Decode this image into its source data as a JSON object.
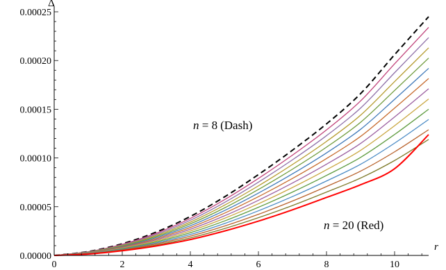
{
  "chart_data": {
    "type": "line",
    "xlabel": "r",
    "ylabel": "Δ",
    "xlim": [
      0,
      11
    ],
    "ylim": [
      0,
      0.00025
    ],
    "x_ticks": [
      0,
      2,
      4,
      6,
      8,
      10
    ],
    "y_ticks": [
      0.0,
      5e-05,
      0.0001,
      0.00015,
      0.0002,
      0.00025
    ],
    "y_tick_labels": [
      "0.00000",
      "0.00005",
      "0.00010",
      "0.00015",
      "0.00020",
      "0.00025"
    ],
    "grid": false,
    "x": [
      0,
      1,
      2,
      3,
      4,
      5,
      6,
      7,
      8,
      9,
      10,
      11
    ],
    "series": [
      {
        "name": "n = 8",
        "style": "dashed",
        "color": "#000000",
        "values": [
          0,
          4e-06,
          1.2e-05,
          2.4e-05,
          4e-05,
          6e-05,
          8.3e-05,
          0.000108,
          0.000135,
          0.000166,
          0.000206,
          0.000245
        ]
      },
      {
        "values": [
          0,
          3.8e-06,
          1.14e-05,
          2.28e-05,
          3.8e-05,
          5.71e-05,
          7.9e-05,
          0.0001029,
          0.0001288,
          0.0001585,
          0.0001966,
          0.000234
        ],
        "color": "#c0427a"
      },
      {
        "values": [
          0,
          3.6e-06,
          1.08e-05,
          2.16e-05,
          3.61e-05,
          5.43e-05,
          7.52e-05,
          9.81e-05,
          0.0001229,
          0.0001512,
          0.0001875,
          0.0002235
        ],
        "color": "#8e6fa8"
      },
      {
        "values": [
          0,
          3.4e-06,
          1.02e-05,
          2.05e-05,
          3.42e-05,
          5.15e-05,
          7.14e-05,
          9.33e-05,
          0.000117,
          0.0001439,
          0.0001784,
          0.000213
        ],
        "color": "#b59b2e"
      },
      {
        "values": [
          0,
          3.2e-06,
          9.7e-06,
          1.94e-05,
          3.24e-05,
          4.87e-05,
          6.77e-05,
          8.85e-05,
          0.0001111,
          0.0001366,
          0.0001693,
          0.0002025
        ],
        "color": "#6e9a3a"
      },
      {
        "values": [
          0,
          3e-06,
          9.1e-06,
          1.83e-05,
          3.05e-05,
          4.6e-05,
          6.4e-05,
          8.37e-05,
          0.0001052,
          0.0001294,
          0.0001602,
          0.000192
        ],
        "color": "#3e78b8"
      },
      {
        "values": [
          0,
          2.8e-06,
          8.6e-06,
          1.72e-05,
          2.87e-05,
          4.33e-05,
          6.03e-05,
          7.9e-05,
          9.94e-05,
          0.0001221,
          0.0001512,
          0.0001815
        ],
        "color": "#c66a2c"
      },
      {
        "values": [
          0,
          2.6e-06,
          8e-06,
          1.61e-05,
          2.69e-05,
          4.06e-05,
          5.66e-05,
          7.43e-05,
          9.36e-05,
          0.0001149,
          0.0001421,
          0.000171
        ],
        "color": "#9b5fa0"
      },
      {
        "values": [
          0,
          2.4e-06,
          7.5e-06,
          1.5e-05,
          2.51e-05,
          3.8e-05,
          5.3e-05,
          6.97e-05,
          8.79e-05,
          0.0001078,
          0.0001331,
          0.0001605
        ],
        "color": "#c9a640"
      },
      {
        "values": [
          0,
          2.2e-06,
          6.9e-06,
          1.39e-05,
          2.33e-05,
          3.53e-05,
          4.94e-05,
          6.5e-05,
          8.21e-05,
          0.0001006,
          0.0001241,
          0.00015
        ],
        "color": "#5e9b3f"
      },
      {
        "values": [
          0,
          2e-06,
          6.4e-06,
          1.28e-05,
          2.15e-05,
          3.27e-05,
          4.58e-05,
          6.04e-05,
          7.64e-05,
          9.35e-05,
          0.0001152,
          0.0001395
        ],
        "color": "#4a8ac4"
      },
      {
        "values": [
          0,
          1.8e-06,
          5.8e-06,
          1.18e-05,
          1.98e-05,
          3.01e-05,
          4.22e-05,
          5.58e-05,
          7.07e-05,
          8.65e-05,
          0.0001063,
          0.000129
        ],
        "color": "#b8622c"
      },
      {
        "values": [
          0,
          1.6e-06,
          5.3e-06,
          1.07e-05,
          1.8e-05,
          2.75e-05,
          3.87e-05,
          5.12e-05,
          6.5e-05,
          7.94e-05,
          9.74e-05,
          0.000119
        ],
        "color": "#7e7a2a"
      },
      {
        "name": "n = 20",
        "style": "solid",
        "color": "#ff0000",
        "values": [
          0,
          1.4e-06,
          4.8e-06,
          9.7e-06,
          1.63e-05,
          2.5e-05,
          3.52e-05,
          4.68e-05,
          5.95e-05,
          7.25e-05,
          8.9e-05,
          0.000124
        ]
      }
    ],
    "annotations": [
      {
        "var": "n",
        "eq": " = ",
        "num": "8",
        "note": "(Dash)"
      },
      {
        "var": "n",
        "eq": " = ",
        "num": "20",
        "note": "(Red)"
      }
    ]
  }
}
